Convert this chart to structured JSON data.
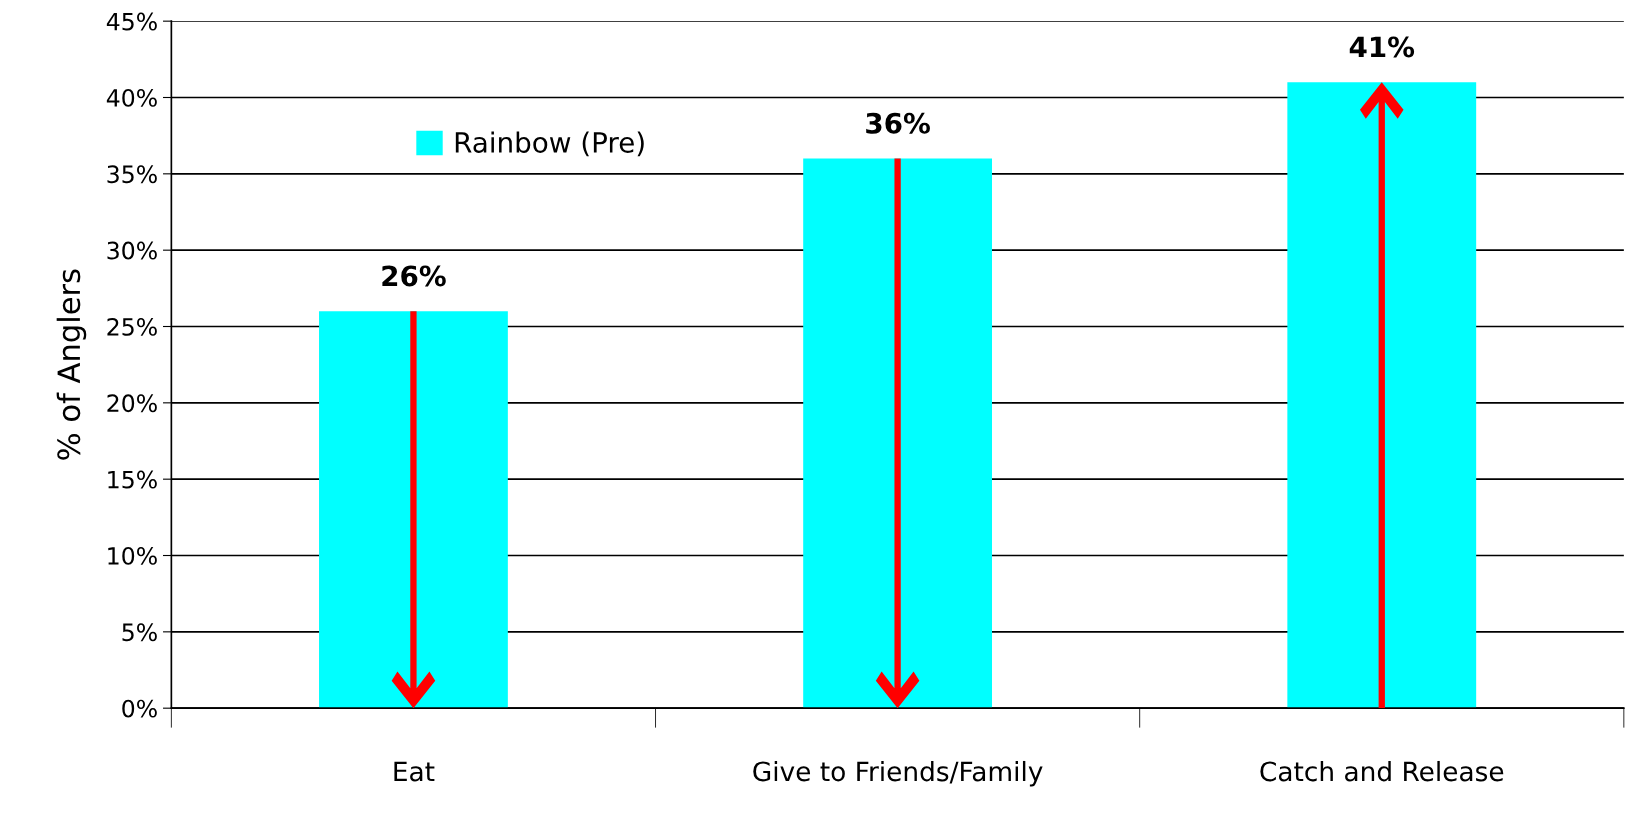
{
  "chart_data": {
    "type": "bar",
    "ylabel": "% of Anglers",
    "categories": [
      "Eat",
      "Give to Friends/Family",
      "Catch and Release"
    ],
    "series": [
      {
        "name": "Rainbow (Pre)",
        "color": "#00ffff",
        "values": [
          26,
          36,
          41
        ],
        "value_labels": [
          "26%",
          "36%",
          "41%"
        ]
      }
    ],
    "ylim": [
      0,
      45
    ],
    "yticks": [
      {
        "value": 0,
        "label": "0%"
      },
      {
        "value": 5,
        "label": "5%"
      },
      {
        "value": 10,
        "label": "10%"
      },
      {
        "value": 15,
        "label": "15%"
      },
      {
        "value": 20,
        "label": "20%"
      },
      {
        "value": 25,
        "label": "25%"
      },
      {
        "value": 30,
        "label": "30%"
      },
      {
        "value": 35,
        "label": "35%"
      },
      {
        "value": 40,
        "label": "40%"
      },
      {
        "value": 45,
        "label": "45%"
      }
    ],
    "grid": "y",
    "legend": "top left"
  }
}
